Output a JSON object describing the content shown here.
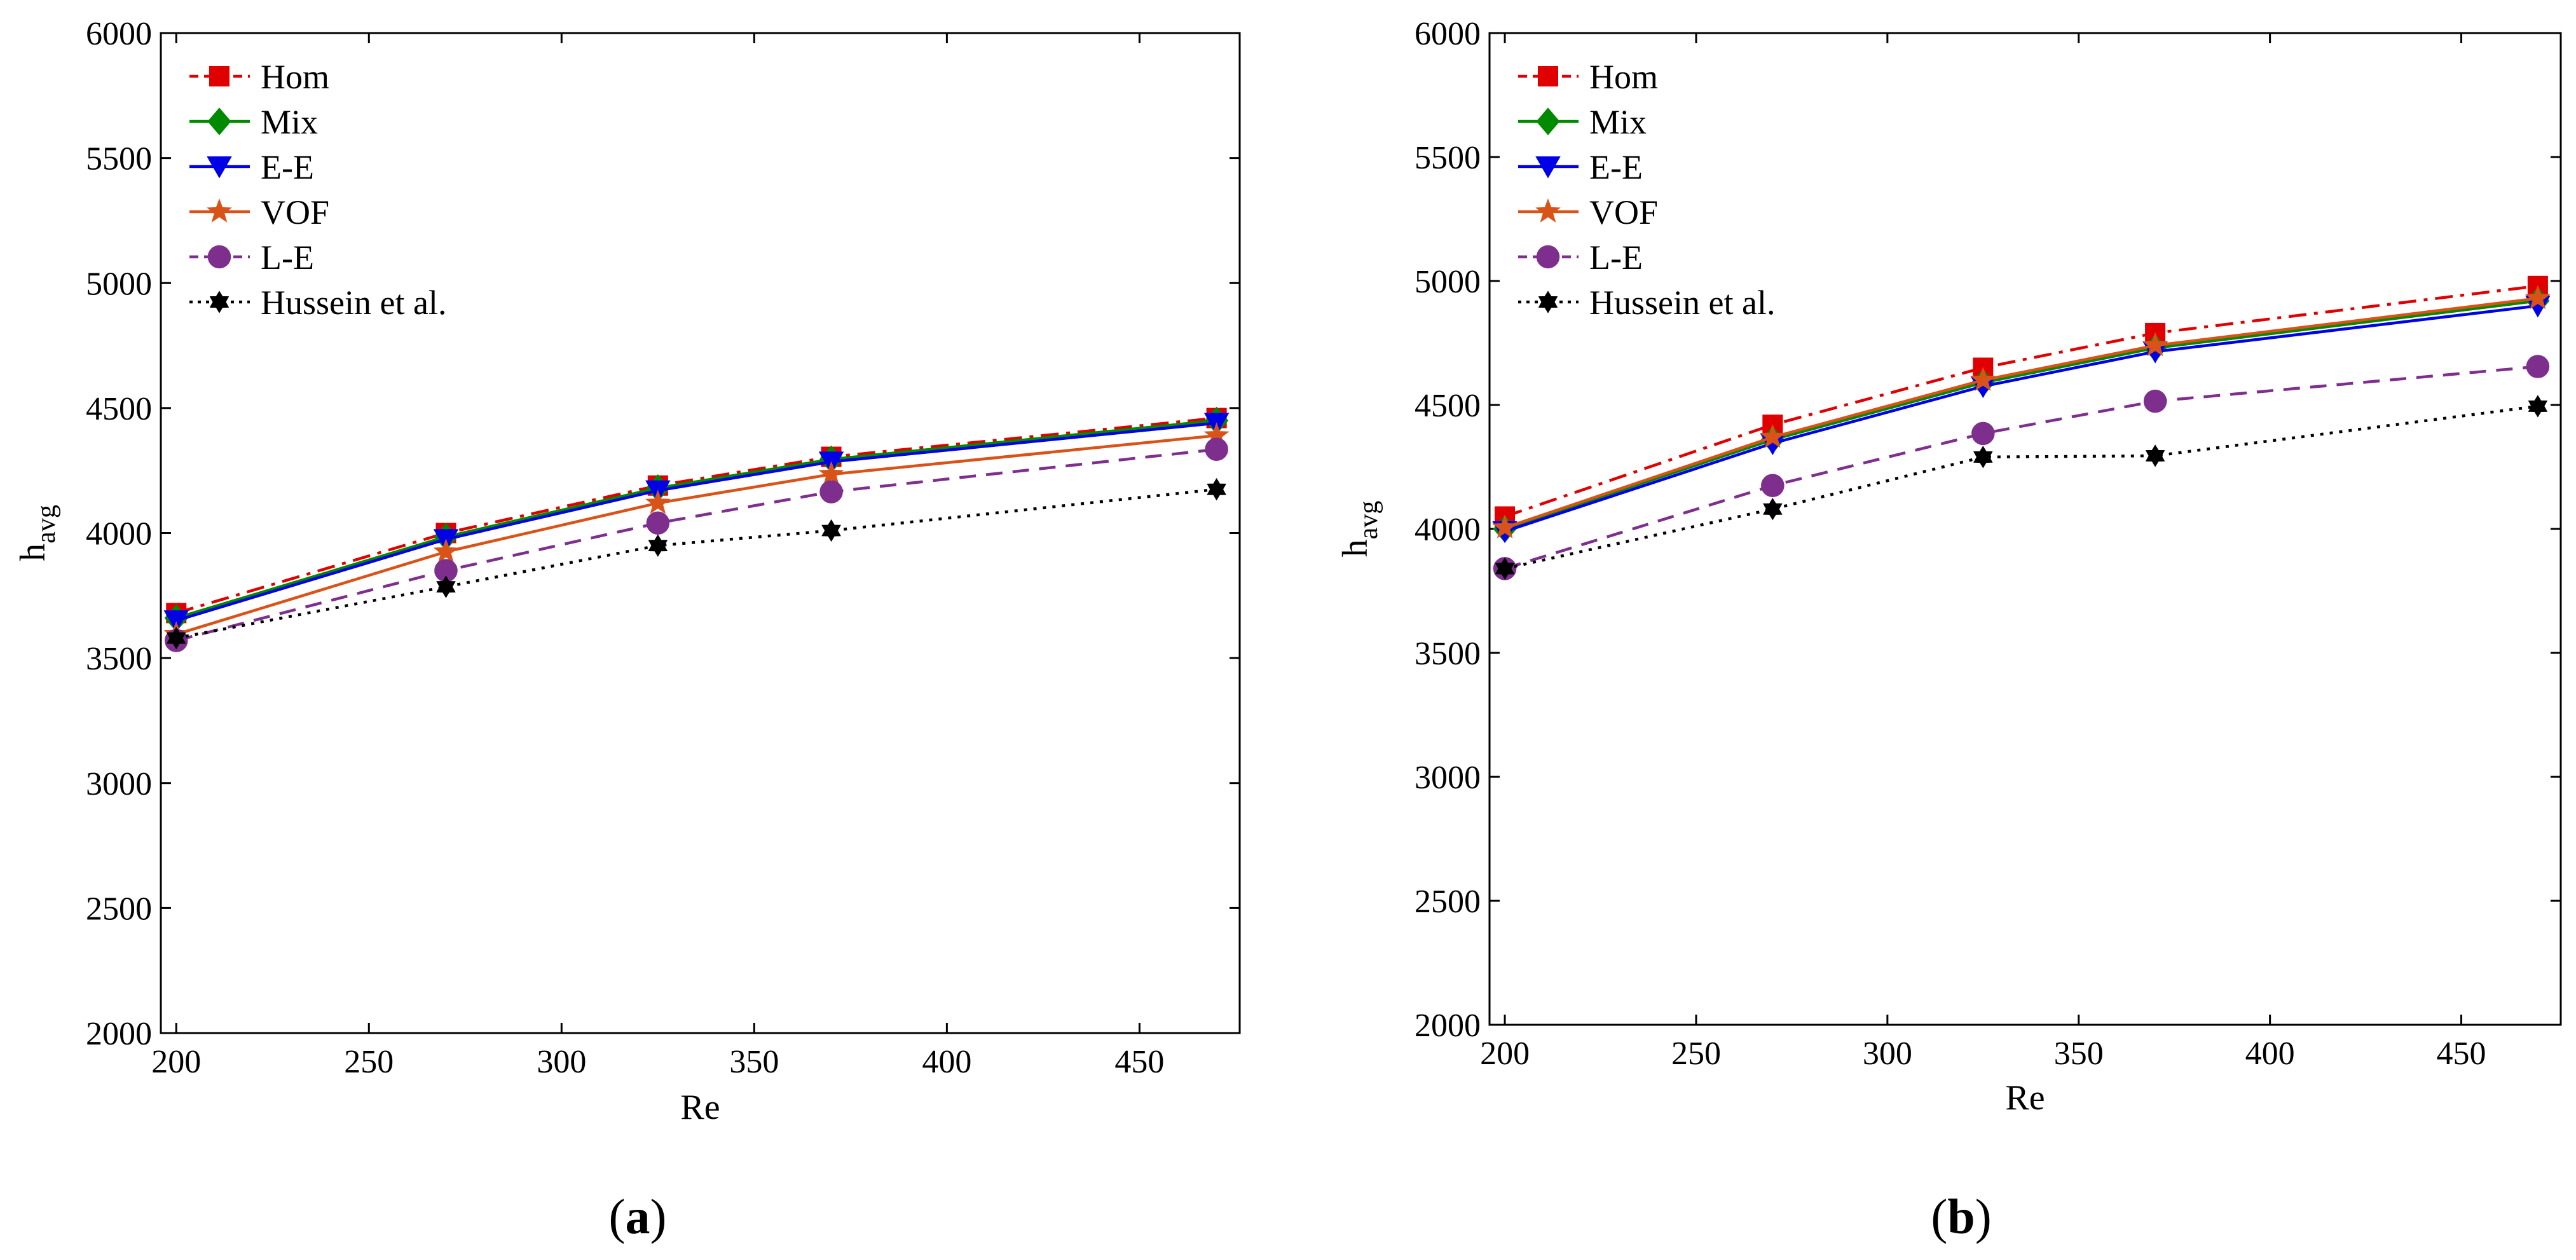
{
  "chart_data": [
    {
      "type": "line",
      "panel_caption": "(a)",
      "xlabel": "Re",
      "ylabel": "h",
      "ylabel_subscript": "avg",
      "xlim": [
        196,
        476
      ],
      "ylim": [
        2000,
        6000
      ],
      "xticks": [
        200,
        250,
        300,
        350,
        400,
        450
      ],
      "yticks": [
        2000,
        2500,
        3000,
        3500,
        4000,
        4500,
        5000,
        5500,
        6000
      ],
      "grid": false,
      "legend_position": "top-left",
      "x": [
        200,
        270,
        325,
        370,
        470
      ],
      "series": [
        {
          "name": "Hom",
          "color": "#e00000",
          "dash": "dashdot",
          "marker": "square",
          "values": [
            3680,
            4000,
            4190,
            4305,
            4460
          ]
        },
        {
          "name": "Mix",
          "color": "#008a00",
          "dash": "solid",
          "marker": "diamond",
          "values": [
            3660,
            3985,
            4180,
            4295,
            4450
          ]
        },
        {
          "name": "E-E",
          "color": "#0000e6",
          "dash": "solid",
          "marker": "triangle-down",
          "values": [
            3650,
            3975,
            4170,
            4285,
            4440
          ]
        },
        {
          "name": "VOF",
          "color": "#d95319",
          "dash": "solid",
          "marker": "star",
          "values": [
            3595,
            3925,
            4120,
            4235,
            4390
          ]
        },
        {
          "name": "L-E",
          "color": "#7e2f8e",
          "dash": "dashed",
          "marker": "circle",
          "values": [
            3570,
            3850,
            4040,
            4165,
            4335
          ]
        },
        {
          "name": "Hussein et al.",
          "color": "#000000",
          "dash": "dotted",
          "marker": "hexagram",
          "values": [
            3580,
            3785,
            3950,
            4010,
            4175
          ]
        }
      ]
    },
    {
      "type": "line",
      "panel_caption": "(b)",
      "xlabel": "Re",
      "ylabel": "h",
      "ylabel_subscript": "avg",
      "xlim": [
        196,
        476
      ],
      "ylim": [
        2000,
        6000
      ],
      "xticks": [
        200,
        250,
        300,
        350,
        400,
        450
      ],
      "yticks": [
        2000,
        2500,
        3000,
        3500,
        4000,
        4500,
        5000,
        5500,
        6000
      ],
      "grid": false,
      "legend_position": "top-left",
      "x": [
        200,
        270,
        325,
        370,
        470
      ],
      "series": [
        {
          "name": "Hom",
          "color": "#e00000",
          "dash": "dashdot",
          "marker": "square",
          "values": [
            4050,
            4420,
            4650,
            4790,
            4980
          ]
        },
        {
          "name": "Mix",
          "color": "#008a00",
          "dash": "solid",
          "marker": "diamond",
          "values": [
            4000,
            4360,
            4590,
            4730,
            4920
          ]
        },
        {
          "name": "E-E",
          "color": "#0000e6",
          "dash": "solid",
          "marker": "triangle-down",
          "values": [
            3990,
            4345,
            4575,
            4715,
            4900
          ]
        },
        {
          "name": "VOF",
          "color": "#d95319",
          "dash": "solid",
          "marker": "star",
          "values": [
            4005,
            4370,
            4600,
            4740,
            4930
          ]
        },
        {
          "name": "L-E",
          "color": "#7e2f8e",
          "dash": "dashed",
          "marker": "circle",
          "values": [
            3840,
            4175,
            4385,
            4515,
            4655
          ]
        },
        {
          "name": "Hussein et al.",
          "color": "#000000",
          "dash": "dotted",
          "marker": "hexagram",
          "values": [
            3840,
            4080,
            4290,
            4295,
            4495
          ]
        }
      ]
    }
  ]
}
